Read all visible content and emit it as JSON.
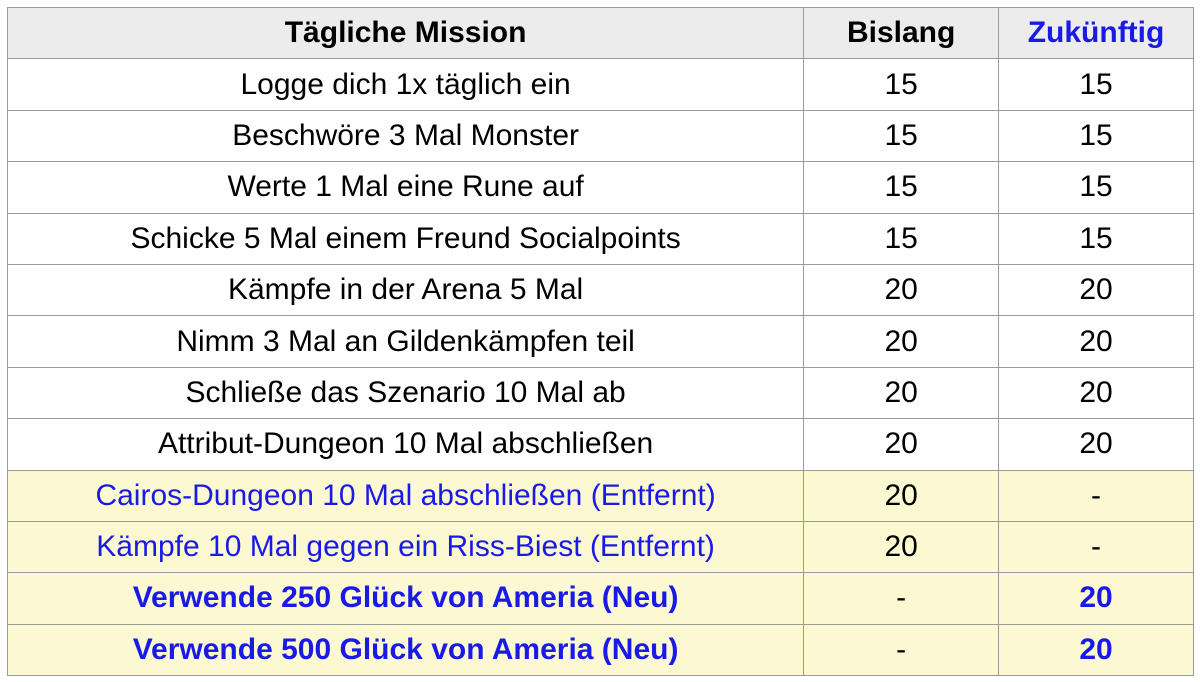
{
  "table": {
    "header": [
      "Tägliche Mission",
      "Bislang",
      "Zukünftig"
    ],
    "rows": [
      [
        "Logge dich 1x täglich ein",
        15,
        15
      ],
      [
        "Beschwöre 3 Mal Monster",
        15,
        15
      ],
      [
        "Werte 1 Mal eine Rune auf",
        15,
        15
      ],
      [
        "Schicke 5 Mal einem Freund Socialpoints",
        15,
        15
      ],
      [
        "Kämpfe in der Arena 5 Mal",
        20,
        20
      ],
      [
        "Nimm 3 Mal an Gildenkämpfen teil",
        20,
        20
      ],
      [
        "Schließe das Szenario 10 Mal ab",
        20,
        20
      ],
      [
        "Attribut-Dungeon 10 Mal abschließen",
        20,
        20
      ],
      [
        "Cairos-Dungeon 10 Mal abschließen (Entfernt)",
        20,
        "-"
      ],
      [
        "Kämpfe 10 Mal gegen ein Riss-Biest (Entfernt)",
        20,
        "-"
      ],
      [
        "Verwende 250 Glück von Ameria (Neu)",
        "-",
        20
      ],
      [
        "Verwende 500 Glück von Ameria (Neu)",
        "-",
        20
      ]
    ]
  }
}
